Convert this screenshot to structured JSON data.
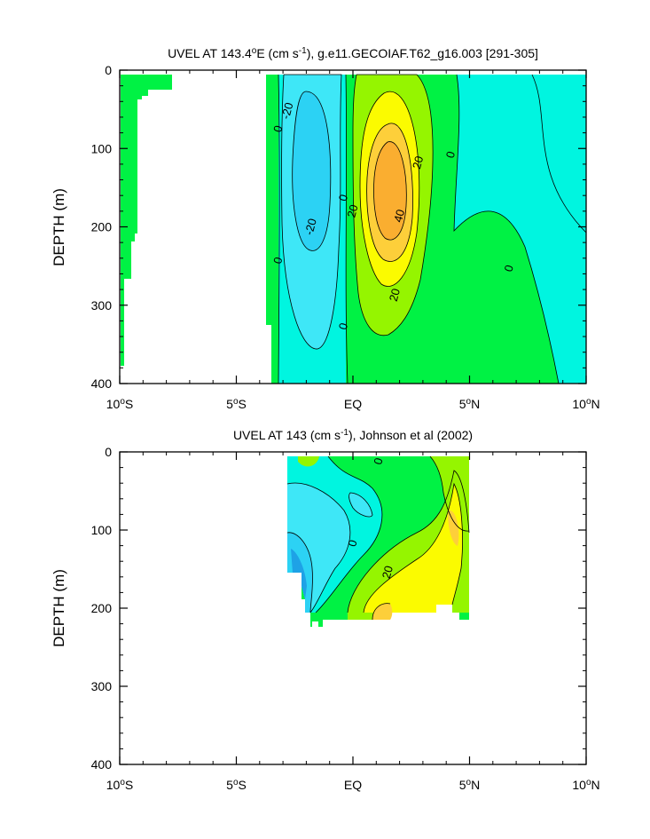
{
  "chart_data": [
    {
      "type": "contour",
      "title": {
        "prefix": "UVEL AT 143.4",
        "sup1": "o",
        "mid": "E (cm s",
        "sup2": "-1",
        "suffix": "), g.e11.GECOIAF.T62_g16.003 [291-305]"
      },
      "ylabel": "DEPTH (m)",
      "xlabel": "",
      "xlim": [
        -10,
        10
      ],
      "ylim": [
        0,
        400
      ],
      "y_inverted": true,
      "x_ticks": [
        {
          "value": -10,
          "num": "10",
          "sup": "o",
          "hemi": "S"
        },
        {
          "value": -5,
          "num": "5",
          "sup": "o",
          "hemi": "S"
        },
        {
          "value": 0,
          "num": "EQ",
          "sup": "",
          "hemi": ""
        },
        {
          "value": 5,
          "num": "5",
          "sup": "o",
          "hemi": "N"
        },
        {
          "value": 10,
          "num": "10",
          "sup": "o",
          "hemi": "N"
        }
      ],
      "y_ticks": [
        0,
        100,
        200,
        300,
        400
      ],
      "contour_levels": [
        -30,
        -20,
        -10,
        0,
        10,
        20,
        30,
        40
      ],
      "contour_labels": [
        {
          "text": "-20",
          "x": -2.8,
          "y": 52
        },
        {
          "text": "-20",
          "x": -1.8,
          "y": 200
        },
        {
          "text": "0",
          "x": -3.2,
          "y": 75
        },
        {
          "text": "0",
          "x": -3.2,
          "y": 243
        },
        {
          "text": "0",
          "x": -0.4,
          "y": 163
        },
        {
          "text": "20",
          "x": 0.0,
          "y": 180
        },
        {
          "text": "40",
          "x": 2.0,
          "y": 186
        },
        {
          "text": "20",
          "x": 2.8,
          "y": 118
        },
        {
          "text": "0",
          "x": 4.2,
          "y": 108
        },
        {
          "text": "0",
          "x": 6.7,
          "y": 253
        },
        {
          "text": "20",
          "x": 1.8,
          "y": 287
        },
        {
          "text": "0",
          "x": -0.4,
          "y": 327
        }
      ]
    },
    {
      "type": "contour",
      "title": {
        "prefix": "UVEL AT 143 (cm s",
        "sup1": "",
        "mid": "",
        "sup2": "-1",
        "suffix": "), Johnson et al (2002)"
      },
      "ylabel": "DEPTH (m)",
      "xlabel": "",
      "xlim": [
        -10,
        10
      ],
      "ylim": [
        0,
        400
      ],
      "y_inverted": true,
      "x_ticks": [
        {
          "value": -10,
          "num": "10",
          "sup": "o",
          "hemi": "S"
        },
        {
          "value": -5,
          "num": "5",
          "sup": "o",
          "hemi": "S"
        },
        {
          "value": 0,
          "num": "EQ",
          "sup": "",
          "hemi": ""
        },
        {
          "value": 5,
          "num": "5",
          "sup": "o",
          "hemi": "N"
        },
        {
          "value": 10,
          "num": "10",
          "sup": "o",
          "hemi": "N"
        }
      ],
      "y_ticks": [
        0,
        100,
        200,
        300,
        400
      ],
      "contour_levels": [
        -30,
        -20,
        -10,
        0,
        10,
        20,
        30
      ],
      "contour_labels": [
        {
          "text": "0",
          "x": 1.1,
          "y": 12
        },
        {
          "text": "0",
          "x": 0.0,
          "y": 117
        },
        {
          "text": "20",
          "x": 1.5,
          "y": 154
        }
      ]
    }
  ],
  "colors": {
    "lt_minus30": "#1ea2e6",
    "minus30_to_minus20": "#2cd2f4",
    "minus20_to_minus10": "#3ee7f7",
    "minus10_to_0": "#00f5e0",
    "0_to_10": "#00f244",
    "10_to_20": "#95f500",
    "20_to_30": "#fbfb00",
    "30_to_40": "#fdcf3a",
    "gt_40": "#faae30",
    "land": "#00f244",
    "axis": "#000000",
    "background": "#ffffff"
  }
}
